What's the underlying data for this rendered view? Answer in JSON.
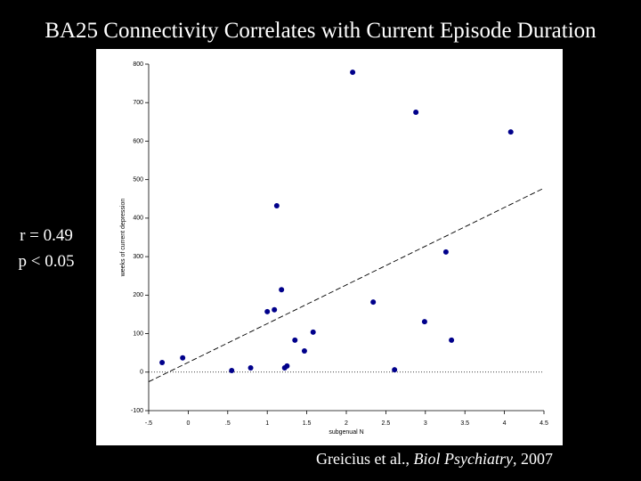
{
  "title": "BA25 Connectivity Correlates with Current Episode Duration",
  "annotations": [
    "r = 0.49",
    "p < 0.05"
  ],
  "citation": {
    "authors": "Greicius et al.,",
    "journal": "Biol Psychiatry",
    "year": ", 2007"
  },
  "chart_data": {
    "type": "scatter",
    "xlabel": "subgenual N",
    "ylabel": "weeks of current depression",
    "x": [
      -0.33,
      -0.07,
      0.55,
      0.79,
      1.0,
      1.09,
      1.12,
      1.18,
      1.22,
      1.25,
      1.35,
      1.47,
      1.58,
      2.08,
      2.34,
      2.61,
      2.88,
      2.99,
      3.26,
      3.33,
      4.08
    ],
    "values": [
      25,
      37,
      4,
      11,
      157,
      162,
      432,
      214,
      11,
      16,
      83,
      55,
      104,
      779,
      182,
      6,
      675,
      131,
      312,
      83,
      624
    ],
    "color": "#00008b",
    "trend_line": {
      "x": [
        -0.5,
        4.5
      ],
      "y": [
        -25,
        478
      ]
    },
    "hline": 0,
    "xlim": [
      -0.5,
      4.5
    ],
    "xticks": [
      {
        "value": -0.5,
        "label": "-.5"
      },
      0,
      {
        "value": 0.5,
        "label": ".5"
      },
      1,
      1.5,
      2,
      2.5,
      3,
      3.5,
      4,
      4.5
    ],
    "ylim": [
      -100,
      800
    ],
    "yticks": [
      -100,
      0,
      100,
      200,
      300,
      400,
      500,
      600,
      700,
      800
    ]
  }
}
